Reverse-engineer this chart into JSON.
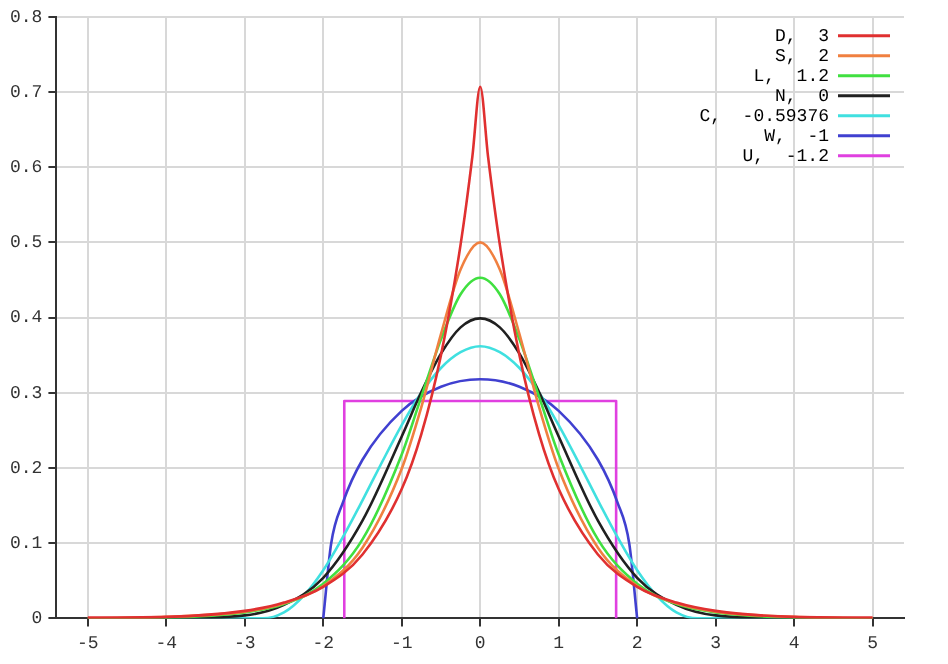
{
  "chart_data": {
    "type": "line",
    "xlim": [
      -5.4,
      5.4
    ],
    "xticks": [
      -5,
      -4,
      -3,
      -2,
      -1,
      0,
      1,
      2,
      3,
      4,
      5
    ],
    "ylim": [
      0,
      0.8
    ],
    "yticks": [
      0,
      0.1,
      0.2,
      0.3,
      0.4,
      0.5,
      0.6,
      0.7,
      0.8
    ],
    "grid": true,
    "legend": "top right",
    "marker": "none",
    "line_style": "solid",
    "series": [
      {
        "name": "D,  3",
        "color": "#e03030",
        "x": [
          -5,
          -4,
          -3,
          -2.5,
          -2,
          -1.5,
          -1,
          -0.75,
          -0.5,
          -0.25,
          -0.1,
          0,
          0.1,
          0.25,
          0.5,
          0.75,
          1,
          1.5,
          2,
          2.5,
          3,
          4,
          5
        ],
        "values": [
          0.001,
          0.002,
          0.01,
          0.021,
          0.042,
          0.085,
          0.172,
          0.245,
          0.35,
          0.497,
          0.614,
          0.707,
          0.614,
          0.497,
          0.35,
          0.245,
          0.172,
          0.085,
          0.042,
          0.021,
          0.01,
          0.002,
          0.001
        ]
      },
      {
        "name": "S,  2",
        "color": "#f08040",
        "x": [
          -5,
          -4,
          -3,
          -2.5,
          -2,
          -1.5,
          -1,
          -0.75,
          -0.5,
          -0.25,
          0,
          0.25,
          0.5,
          0.75,
          1,
          1.5,
          2,
          2.5,
          3,
          4,
          5
        ],
        "values": [
          0,
          0.002,
          0.009,
          0.02,
          0.043,
          0.094,
          0.199,
          0.281,
          0.378,
          0.464,
          0.5,
          0.464,
          0.378,
          0.281,
          0.199,
          0.094,
          0.043,
          0.02,
          0.009,
          0.002,
          0
        ]
      },
      {
        "name": "L,  1.2",
        "color": "#40e040",
        "x": [
          -5,
          -4,
          -3,
          -2.5,
          -2,
          -1.5,
          -1,
          -0.75,
          -0.5,
          -0.25,
          0,
          0.25,
          0.5,
          0.75,
          1,
          1.5,
          2,
          2.5,
          3,
          4,
          5
        ],
        "values": [
          0,
          0.001,
          0.008,
          0.019,
          0.046,
          0.105,
          0.218,
          0.295,
          0.371,
          0.431,
          0.453,
          0.431,
          0.371,
          0.295,
          0.218,
          0.105,
          0.046,
          0.019,
          0.008,
          0.001,
          0
        ]
      },
      {
        "name": "N,  0",
        "color": "#202020",
        "x": [
          -5,
          -4,
          -3,
          -2.5,
          -2,
          -1.5,
          -1,
          -0.75,
          -0.5,
          -0.25,
          0,
          0.25,
          0.5,
          0.75,
          1,
          1.5,
          2,
          2.5,
          3,
          4,
          5
        ],
        "values": [
          0,
          0,
          0.004,
          0.018,
          0.054,
          0.13,
          0.242,
          0.301,
          0.352,
          0.387,
          0.399,
          0.387,
          0.352,
          0.301,
          0.242,
          0.13,
          0.054,
          0.018,
          0.004,
          0,
          0
        ]
      },
      {
        "name": "C,  -0.59376",
        "color": "#40e0e0",
        "x": [
          -5,
          -2.77,
          -2.5,
          -2.25,
          -2,
          -1.75,
          -1.5,
          -1.25,
          -1,
          -0.75,
          -0.5,
          -0.25,
          0,
          0.25,
          0.5,
          0.75,
          1,
          1.25,
          1.5,
          1.75,
          2,
          2.25,
          2.5,
          2.77,
          5
        ],
        "values": [
          0,
          0,
          0.008,
          0.03,
          0.064,
          0.108,
          0.157,
          0.208,
          0.257,
          0.3,
          0.333,
          0.354,
          0.362,
          0.354,
          0.333,
          0.3,
          0.257,
          0.208,
          0.157,
          0.108,
          0.064,
          0.03,
          0.008,
          0,
          0
        ]
      },
      {
        "name": "W,  -1",
        "color": "#4040d0",
        "x": [
          -2,
          -1.9,
          -1.75,
          -1.5,
          -1,
          -0.5,
          0,
          0.5,
          1,
          1.5,
          1.75,
          1.9,
          2
        ],
        "values": [
          0,
          0.099,
          0.154,
          0.211,
          0.276,
          0.308,
          0.318,
          0.308,
          0.276,
          0.211,
          0.154,
          0.099,
          0
        ]
      },
      {
        "name": "U,  -1.2",
        "color": "#e040e0",
        "x": [
          -1.732,
          -1.732,
          1.732,
          1.732
        ],
        "values": [
          0,
          0.289,
          0.289,
          0
        ]
      }
    ]
  }
}
